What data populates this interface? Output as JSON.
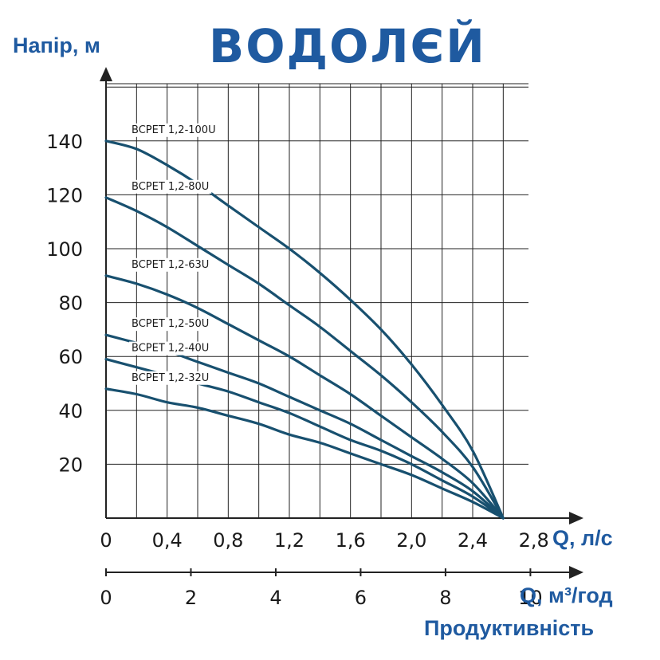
{
  "brand": {
    "logo_text": "ВОДОЛЄЙ",
    "color": "#1f5aa0"
  },
  "colors": {
    "curve": "#18506f",
    "grid": "#222222",
    "axis": "#222222",
    "title": "#1f5aa0",
    "background": "#ffffff"
  },
  "chart_data": {
    "type": "line",
    "ylabel": "Напір, м",
    "xlabel": "Q, л/с",
    "xlabel2": "Q, м³/год",
    "footer_label": "Продуктивність",
    "xlim": [
      0,
      3.0
    ],
    "ylim": [
      0,
      160
    ],
    "x_ticks": [
      "0",
      "0,4",
      "0,8",
      "1,2",
      "1,6",
      "2,0",
      "2,4",
      "2,8"
    ],
    "x_tick_values": [
      0,
      0.4,
      0.8,
      1.2,
      1.6,
      2.0,
      2.4,
      2.8
    ],
    "y_ticks": [
      "20",
      "40",
      "60",
      "80",
      "100",
      "120",
      "140"
    ],
    "y_tick_values": [
      20,
      40,
      60,
      80,
      100,
      120,
      140
    ],
    "x2_ticks": [
      "0",
      "2",
      "4",
      "6",
      "8",
      "10"
    ],
    "x2_tick_values": [
      0,
      2,
      4,
      6,
      8,
      10
    ],
    "grid": true,
    "series": [
      {
        "name": "BCPET 1,2-100U",
        "x": [
          0,
          0.2,
          0.4,
          0.6,
          0.8,
          1.0,
          1.2,
          1.4,
          1.6,
          1.8,
          2.0,
          2.2,
          2.4,
          2.6
        ],
        "y": [
          140,
          137,
          131,
          124,
          116,
          108,
          100,
          91,
          81,
          70,
          57,
          42,
          25,
          0
        ]
      },
      {
        "name": "BCPET 1,2-80U",
        "x": [
          0,
          0.2,
          0.4,
          0.6,
          0.8,
          1.0,
          1.2,
          1.4,
          1.6,
          1.8,
          2.0,
          2.2,
          2.4,
          2.6
        ],
        "y": [
          119,
          114,
          108,
          101,
          94,
          87,
          79,
          71,
          62,
          53,
          43,
          32,
          19,
          0
        ]
      },
      {
        "name": "BCPET 1,2-63U",
        "x": [
          0,
          0.2,
          0.4,
          0.6,
          0.8,
          1.0,
          1.2,
          1.4,
          1.6,
          1.8,
          2.0,
          2.2,
          2.4,
          2.6
        ],
        "y": [
          90,
          87,
          83,
          78,
          72,
          66,
          60,
          53,
          46,
          38,
          30,
          22,
          13,
          0
        ]
      },
      {
        "name": "BCPET 1,2-50U",
        "x": [
          0,
          0.2,
          0.4,
          0.6,
          0.8,
          1.0,
          1.2,
          1.4,
          1.6,
          1.8,
          2.0,
          2.2,
          2.4,
          2.6
        ],
        "y": [
          68,
          65,
          62,
          58,
          54,
          50,
          45,
          40,
          35,
          29,
          23,
          17,
          10,
          0
        ]
      },
      {
        "name": "BCPET 1,2-40U",
        "x": [
          0,
          0.2,
          0.4,
          0.6,
          0.8,
          1.0,
          1.2,
          1.4,
          1.6,
          1.8,
          2.0,
          2.2,
          2.4,
          2.6
        ],
        "y": [
          59,
          56,
          53,
          50,
          47,
          43,
          39,
          34,
          29,
          25,
          20,
          14,
          8,
          0
        ]
      },
      {
        "name": "BCPET 1,2-32U",
        "x": [
          0,
          0.2,
          0.4,
          0.6,
          0.8,
          1.0,
          1.2,
          1.4,
          1.6,
          1.8,
          2.0,
          2.2,
          2.4,
          2.6
        ],
        "y": [
          48,
          46,
          43,
          41,
          38,
          35,
          31,
          28,
          24,
          20,
          16,
          11,
          6,
          0
        ]
      }
    ]
  }
}
